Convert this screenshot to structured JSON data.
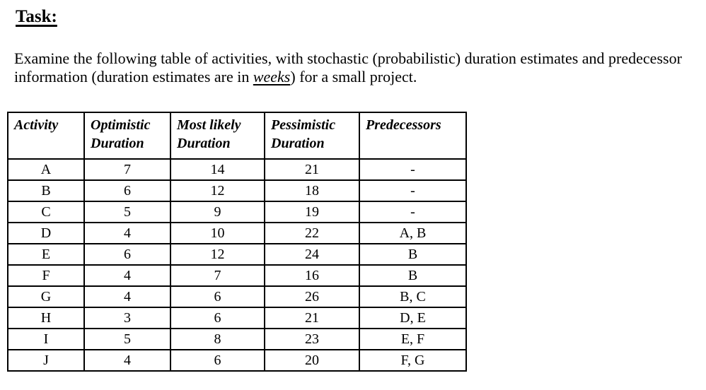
{
  "page": {
    "title": "Task:"
  },
  "intro": {
    "part1": "Examine the following table of activities, with stochastic (probabilistic) duration estimates and predecessor information (duration estimates are in ",
    "emphasis": "weeks",
    "part2": ") for a small project."
  },
  "table": {
    "headers": {
      "activity": "Activity",
      "optimistic": "Optimistic Duration",
      "most_likely": "Most likely Duration",
      "pessimistic": "Pessimistic Duration",
      "predecessors": "Predecessors"
    },
    "rows": [
      {
        "activity": "A",
        "optimistic": "7",
        "most_likely": "14",
        "pessimistic": "21",
        "predecessors": "-"
      },
      {
        "activity": "B",
        "optimistic": "6",
        "most_likely": "12",
        "pessimistic": "18",
        "predecessors": "-"
      },
      {
        "activity": "C",
        "optimistic": "5",
        "most_likely": "9",
        "pessimistic": "19",
        "predecessors": "-"
      },
      {
        "activity": "D",
        "optimistic": "4",
        "most_likely": "10",
        "pessimistic": "22",
        "predecessors": "A, B"
      },
      {
        "activity": "E",
        "optimistic": "6",
        "most_likely": "12",
        "pessimistic": "24",
        "predecessors": "B"
      },
      {
        "activity": "F",
        "optimistic": "4",
        "most_likely": "7",
        "pessimistic": "16",
        "predecessors": "B"
      },
      {
        "activity": "G",
        "optimistic": "4",
        "most_likely": "6",
        "pessimistic": "26",
        "predecessors": "B, C"
      },
      {
        "activity": "H",
        "optimistic": "3",
        "most_likely": "6",
        "pessimistic": "21",
        "predecessors": "D, E"
      },
      {
        "activity": "I",
        "optimistic": "5",
        "most_likely": "8",
        "pessimistic": "23",
        "predecessors": "E, F"
      },
      {
        "activity": "J",
        "optimistic": "4",
        "most_likely": "6",
        "pessimistic": "20",
        "predecessors": "F, G"
      }
    ]
  }
}
